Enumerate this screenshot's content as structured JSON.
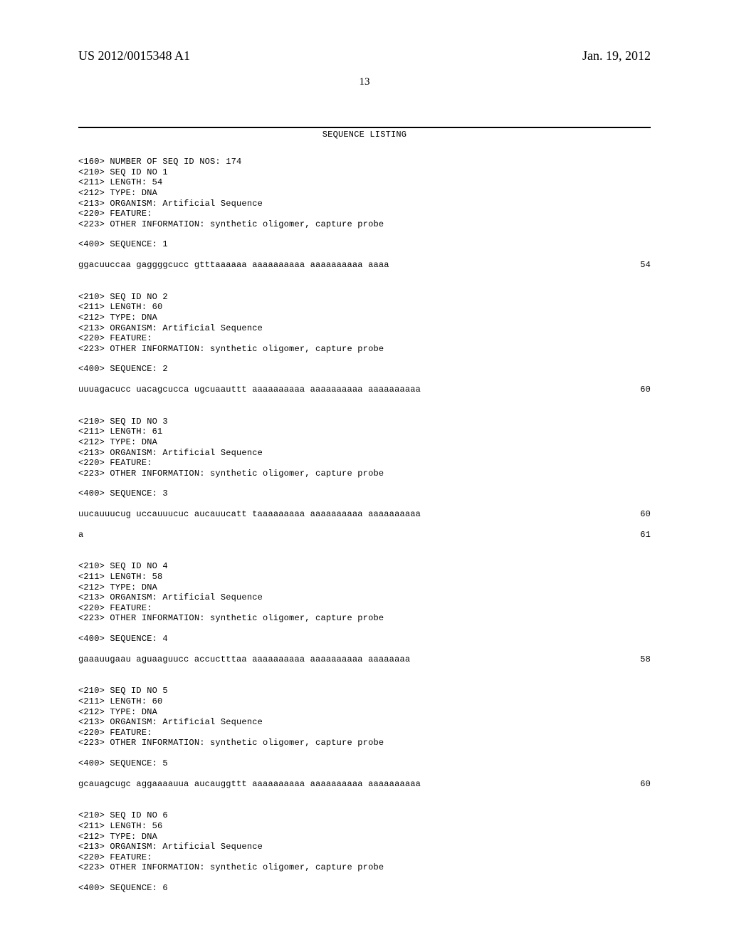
{
  "header": {
    "pub_number": "US 2012/0015348 A1",
    "pub_date": "Jan. 19, 2012"
  },
  "page_number": "13",
  "listing_title": "SEQUENCE LISTING",
  "num_seq_line": "<160> NUMBER OF SEQ ID NOS: 174",
  "entries": [
    {
      "meta": [
        "<210> SEQ ID NO 1",
        "<211> LENGTH: 54",
        "<212> TYPE: DNA",
        "<213> ORGANISM: Artificial Sequence",
        "<220> FEATURE:",
        "<223> OTHER INFORMATION: synthetic oligomer, capture probe"
      ],
      "seq_label": "<400> SEQUENCE: 1",
      "seq_rows": [
        {
          "text": "ggacuuccaa gaggggcucc gtttaaaaaa aaaaaaaaaa aaaaaaaaaa aaaa",
          "num": "54"
        }
      ]
    },
    {
      "meta": [
        "<210> SEQ ID NO 2",
        "<211> LENGTH: 60",
        "<212> TYPE: DNA",
        "<213> ORGANISM: Artificial Sequence",
        "<220> FEATURE:",
        "<223> OTHER INFORMATION: synthetic oligomer, capture probe"
      ],
      "seq_label": "<400> SEQUENCE: 2",
      "seq_rows": [
        {
          "text": "uuuagacucc uacagcucca ugcuaauttt aaaaaaaaaa aaaaaaaaaa aaaaaaaaaa",
          "num": "60"
        }
      ]
    },
    {
      "meta": [
        "<210> SEQ ID NO 3",
        "<211> LENGTH: 61",
        "<212> TYPE: DNA",
        "<213> ORGANISM: Artificial Sequence",
        "<220> FEATURE:",
        "<223> OTHER INFORMATION: synthetic oligomer, capture probe"
      ],
      "seq_label": "<400> SEQUENCE: 3",
      "seq_rows": [
        {
          "text": "uucauuucug uccauuucuc aucauucatt taaaaaaaaa aaaaaaaaaa aaaaaaaaaa",
          "num": "60"
        },
        {
          "text": "a",
          "num": "61"
        }
      ]
    },
    {
      "meta": [
        "<210> SEQ ID NO 4",
        "<211> LENGTH: 58",
        "<212> TYPE: DNA",
        "<213> ORGANISM: Artificial Sequence",
        "<220> FEATURE:",
        "<223> OTHER INFORMATION: synthetic oligomer, capture probe"
      ],
      "seq_label": "<400> SEQUENCE: 4",
      "seq_rows": [
        {
          "text": "gaaauugaau aguaaguucc accuctttaa aaaaaaaaaa aaaaaaaaaa aaaaaaaa",
          "num": "58"
        }
      ]
    },
    {
      "meta": [
        "<210> SEQ ID NO 5",
        "<211> LENGTH: 60",
        "<212> TYPE: DNA",
        "<213> ORGANISM: Artificial Sequence",
        "<220> FEATURE:",
        "<223> OTHER INFORMATION: synthetic oligomer, capture probe"
      ],
      "seq_label": "<400> SEQUENCE: 5",
      "seq_rows": [
        {
          "text": "gcauagcugc aggaaaauua aucauggttt aaaaaaaaaa aaaaaaaaaa aaaaaaaaaa",
          "num": "60"
        }
      ]
    },
    {
      "meta": [
        "<210> SEQ ID NO 6",
        "<211> LENGTH: 56",
        "<212> TYPE: DNA",
        "<213> ORGANISM: Artificial Sequence",
        "<220> FEATURE:",
        "<223> OTHER INFORMATION: synthetic oligomer, capture probe"
      ],
      "seq_label": "<400> SEQUENCE: 6",
      "seq_rows": []
    }
  ]
}
